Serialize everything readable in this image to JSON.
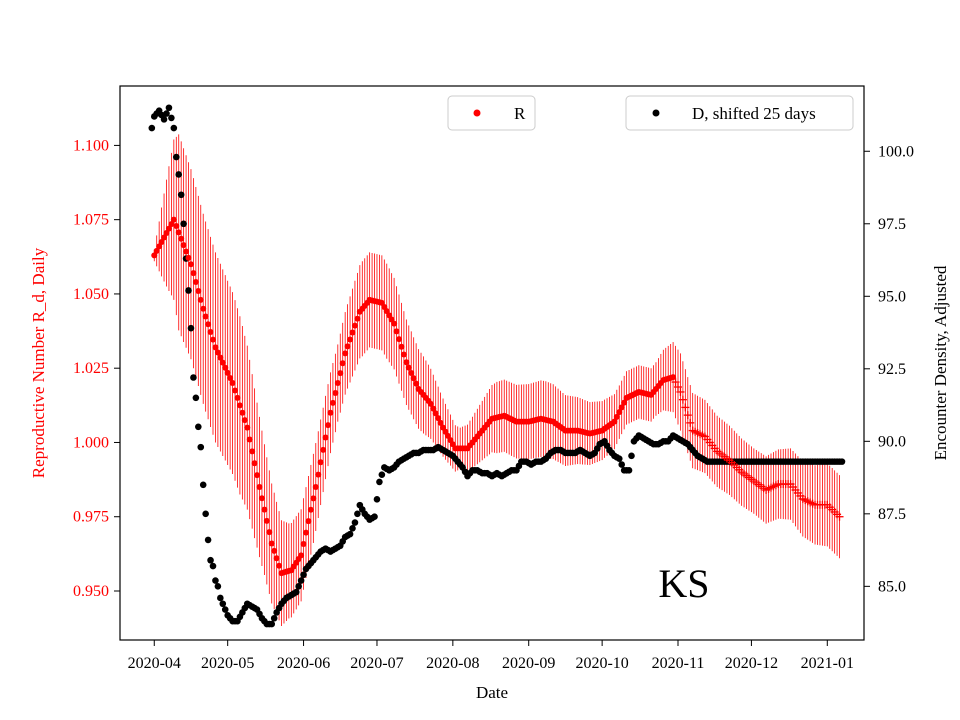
{
  "chart_data": {
    "type": "scatter",
    "state_label": "KS",
    "xlabel": "Date",
    "ylabel_left": "Reproductive Number R_d, Daily",
    "ylabel_right": "Encounter Density, Adjusted",
    "x_range_days": [
      -14,
      290
    ],
    "ylim_left": [
      0.9335,
      1.12
    ],
    "ylim_right": [
      83.15,
      102.25
    ],
    "x_ticks": [
      {
        "day": 0,
        "label": "2020-04"
      },
      {
        "day": 30,
        "label": "2020-05"
      },
      {
        "day": 61,
        "label": "2020-06"
      },
      {
        "day": 91,
        "label": "2020-07"
      },
      {
        "day": 122,
        "label": "2020-08"
      },
      {
        "day": 153,
        "label": "2020-09"
      },
      {
        "day": 183,
        "label": "2020-10"
      },
      {
        "day": 214,
        "label": "2020-11"
      },
      {
        "day": 244,
        "label": "2020-12"
      },
      {
        "day": 275,
        "label": "2021-01"
      }
    ],
    "y_ticks_left": [
      {
        "value": 0.95,
        "label": "0.950"
      },
      {
        "value": 0.975,
        "label": "0.975"
      },
      {
        "value": 1.0,
        "label": "1.000"
      },
      {
        "value": 1.025,
        "label": "1.025"
      },
      {
        "value": 1.05,
        "label": "1.050"
      },
      {
        "value": 1.075,
        "label": "1.075"
      },
      {
        "value": 1.1,
        "label": "1.100"
      }
    ],
    "y_ticks_right": [
      {
        "value": 85.0,
        "label": "85.0"
      },
      {
        "value": 87.5,
        "label": "87.5"
      },
      {
        "value": 90.0,
        "label": "90.0"
      },
      {
        "value": 92.5,
        "label": "92.5"
      },
      {
        "value": 95.0,
        "label": "95.0"
      },
      {
        "value": 97.5,
        "label": "97.5"
      },
      {
        "value": 100.0,
        "label": "100.0"
      }
    ],
    "series": [
      {
        "name": "R",
        "axis": "left",
        "color": "#ff0000",
        "marker_after_day": 212,
        "points": [
          [
            0,
            1.063
          ],
          [
            8,
            1.075
          ],
          [
            15,
            1.06
          ],
          [
            20,
            1.045
          ],
          [
            25,
            1.032
          ],
          [
            32,
            1.02
          ],
          [
            38,
            1.005
          ],
          [
            43,
            0.985
          ],
          [
            48,
            0.966
          ],
          [
            52,
            0.956
          ],
          [
            56,
            0.957
          ],
          [
            60,
            0.962
          ],
          [
            66,
            0.985
          ],
          [
            72,
            1.01
          ],
          [
            78,
            1.03
          ],
          [
            84,
            1.044
          ],
          [
            88,
            1.048
          ],
          [
            93,
            1.047
          ],
          [
            98,
            1.04
          ],
          [
            103,
            1.027
          ],
          [
            108,
            1.018
          ],
          [
            113,
            1.013
          ],
          [
            118,
            1.005
          ],
          [
            123,
            0.998
          ],
          [
            128,
            0.998
          ],
          [
            133,
            1.003
          ],
          [
            138,
            1.008
          ],
          [
            143,
            1.009
          ],
          [
            148,
            1.007
          ],
          [
            153,
            1.007
          ],
          [
            158,
            1.008
          ],
          [
            163,
            1.007
          ],
          [
            168,
            1.004
          ],
          [
            173,
            1.004
          ],
          [
            178,
            1.003
          ],
          [
            183,
            1.004
          ],
          [
            188,
            1.007
          ],
          [
            193,
            1.015
          ],
          [
            198,
            1.017
          ],
          [
            203,
            1.016
          ],
          [
            208,
            1.021
          ],
          [
            212,
            1.022
          ],
          [
            215,
            1.017
          ],
          [
            220,
            1.004
          ],
          [
            225,
            1.002
          ],
          [
            230,
            0.997
          ],
          [
            235,
            0.994
          ],
          [
            240,
            0.99
          ],
          [
            245,
            0.987
          ],
          [
            250,
            0.984
          ],
          [
            255,
            0.986
          ],
          [
            260,
            0.986
          ],
          [
            265,
            0.981
          ],
          [
            270,
            0.979
          ],
          [
            275,
            0.979
          ],
          [
            280,
            0.975
          ]
        ],
        "error": [
          [
            0,
            0.002
          ],
          [
            5,
            0.018
          ],
          [
            10,
            0.033
          ],
          [
            15,
            0.032
          ],
          [
            25,
            0.032
          ],
          [
            35,
            0.03
          ],
          [
            45,
            0.022
          ],
          [
            55,
            0.016
          ],
          [
            65,
            0.015
          ],
          [
            75,
            0.013
          ],
          [
            85,
            0.016
          ],
          [
            95,
            0.016
          ],
          [
            110,
            0.013
          ],
          [
            125,
            0.007
          ],
          [
            140,
            0.012
          ],
          [
            160,
            0.013
          ],
          [
            175,
            0.011
          ],
          [
            190,
            0.009
          ],
          [
            205,
            0.009
          ],
          [
            215,
            0.013
          ],
          [
            230,
            0.012
          ],
          [
            245,
            0.011
          ],
          [
            260,
            0.012
          ],
          [
            275,
            0.014
          ],
          [
            280,
            0.014
          ]
        ]
      },
      {
        "name": "D, shifted 25 days",
        "axis": "right",
        "color": "#000000",
        "points": [
          [
            -1,
            100.8
          ],
          [
            0,
            101.2
          ],
          [
            2,
            101.4
          ],
          [
            4,
            101.1
          ],
          [
            6,
            101.5
          ],
          [
            8,
            100.8
          ],
          [
            9,
            99.8
          ],
          [
            10,
            99.2
          ],
          [
            11,
            98.5
          ],
          [
            12,
            97.5
          ],
          [
            13,
            96.3
          ],
          [
            14,
            95.2
          ],
          [
            15,
            93.9
          ],
          [
            16,
            92.2
          ],
          [
            17,
            91.5
          ],
          [
            18,
            90.5
          ],
          [
            19,
            89.8
          ],
          [
            20,
            88.5
          ],
          [
            21,
            87.5
          ],
          [
            22,
            86.6
          ],
          [
            23,
            85.9
          ],
          [
            24,
            85.7
          ],
          [
            25,
            85.2
          ],
          [
            26,
            85.0
          ],
          [
            27,
            84.6
          ],
          [
            28,
            84.4
          ],
          [
            29,
            84.2
          ],
          [
            30,
            84.0
          ],
          [
            32,
            83.8
          ],
          [
            34,
            83.8
          ],
          [
            36,
            84.1
          ],
          [
            38,
            84.4
          ],
          [
            40,
            84.3
          ],
          [
            42,
            84.2
          ],
          [
            44,
            83.9
          ],
          [
            46,
            83.7
          ],
          [
            48,
            83.7
          ],
          [
            50,
            84.1
          ],
          [
            52,
            84.4
          ],
          [
            54,
            84.6
          ],
          [
            56,
            84.7
          ],
          [
            58,
            84.8
          ],
          [
            60,
            85.2
          ],
          [
            62,
            85.6
          ],
          [
            64,
            85.8
          ],
          [
            66,
            86.0
          ],
          [
            68,
            86.2
          ],
          [
            70,
            86.3
          ],
          [
            72,
            86.2
          ],
          [
            74,
            86.3
          ],
          [
            76,
            86.4
          ],
          [
            78,
            86.7
          ],
          [
            80,
            86.8
          ],
          [
            82,
            87.2
          ],
          [
            84,
            87.8
          ],
          [
            86,
            87.5
          ],
          [
            88,
            87.3
          ],
          [
            90,
            87.4
          ],
          [
            92,
            88.6
          ],
          [
            94,
            89.1
          ],
          [
            96,
            89.0
          ],
          [
            98,
            89.1
          ],
          [
            100,
            89.3
          ],
          [
            102,
            89.4
          ],
          [
            104,
            89.5
          ],
          [
            106,
            89.6
          ],
          [
            108,
            89.6
          ],
          [
            110,
            89.7
          ],
          [
            112,
            89.7
          ],
          [
            114,
            89.7
          ],
          [
            116,
            89.8
          ],
          [
            118,
            89.7
          ],
          [
            120,
            89.6
          ],
          [
            122,
            89.5
          ],
          [
            124,
            89.3
          ],
          [
            126,
            89.1
          ],
          [
            128,
            88.8
          ],
          [
            130,
            89.0
          ],
          [
            132,
            89.0
          ],
          [
            134,
            88.9
          ],
          [
            136,
            88.9
          ],
          [
            138,
            88.8
          ],
          [
            140,
            88.9
          ],
          [
            142,
            88.8
          ],
          [
            144,
            88.9
          ],
          [
            146,
            89.0
          ],
          [
            148,
            89.0
          ],
          [
            150,
            89.3
          ],
          [
            152,
            89.3
          ],
          [
            154,
            89.2
          ],
          [
            156,
            89.3
          ],
          [
            158,
            89.3
          ],
          [
            160,
            89.4
          ],
          [
            162,
            89.6
          ],
          [
            164,
            89.7
          ],
          [
            166,
            89.7
          ],
          [
            168,
            89.6
          ],
          [
            170,
            89.6
          ],
          [
            172,
            89.6
          ],
          [
            174,
            89.7
          ],
          [
            176,
            89.6
          ],
          [
            178,
            89.5
          ],
          [
            180,
            89.6
          ],
          [
            182,
            89.9
          ],
          [
            184,
            90.0
          ],
          [
            186,
            89.7
          ],
          [
            188,
            89.5
          ],
          [
            190,
            89.4
          ],
          [
            192,
            89.0
          ],
          [
            194,
            89.0
          ],
          [
            196,
            90.0
          ],
          [
            198,
            90.2
          ],
          [
            200,
            90.1
          ],
          [
            202,
            90.0
          ],
          [
            204,
            89.9
          ],
          [
            206,
            89.9
          ],
          [
            208,
            90.0
          ],
          [
            210,
            90.0
          ],
          [
            212,
            90.2
          ],
          [
            214,
            90.1
          ],
          [
            216,
            90.0
          ],
          [
            218,
            89.9
          ],
          [
            220,
            89.7
          ],
          [
            222,
            89.5
          ],
          [
            224,
            89.4
          ],
          [
            226,
            89.3
          ],
          [
            230,
            89.3
          ],
          [
            240,
            89.3
          ],
          [
            250,
            89.3
          ],
          [
            260,
            89.3
          ],
          [
            270,
            89.3
          ],
          [
            278,
            89.3
          ],
          [
            281,
            89.3
          ]
        ]
      }
    ]
  },
  "legend": {
    "left_label": "R",
    "right_label": "D, shifted 25 days"
  },
  "colors": {
    "r_series": "#ff0000",
    "d_series": "#000000",
    "left_axis_text": "#ff0000"
  }
}
